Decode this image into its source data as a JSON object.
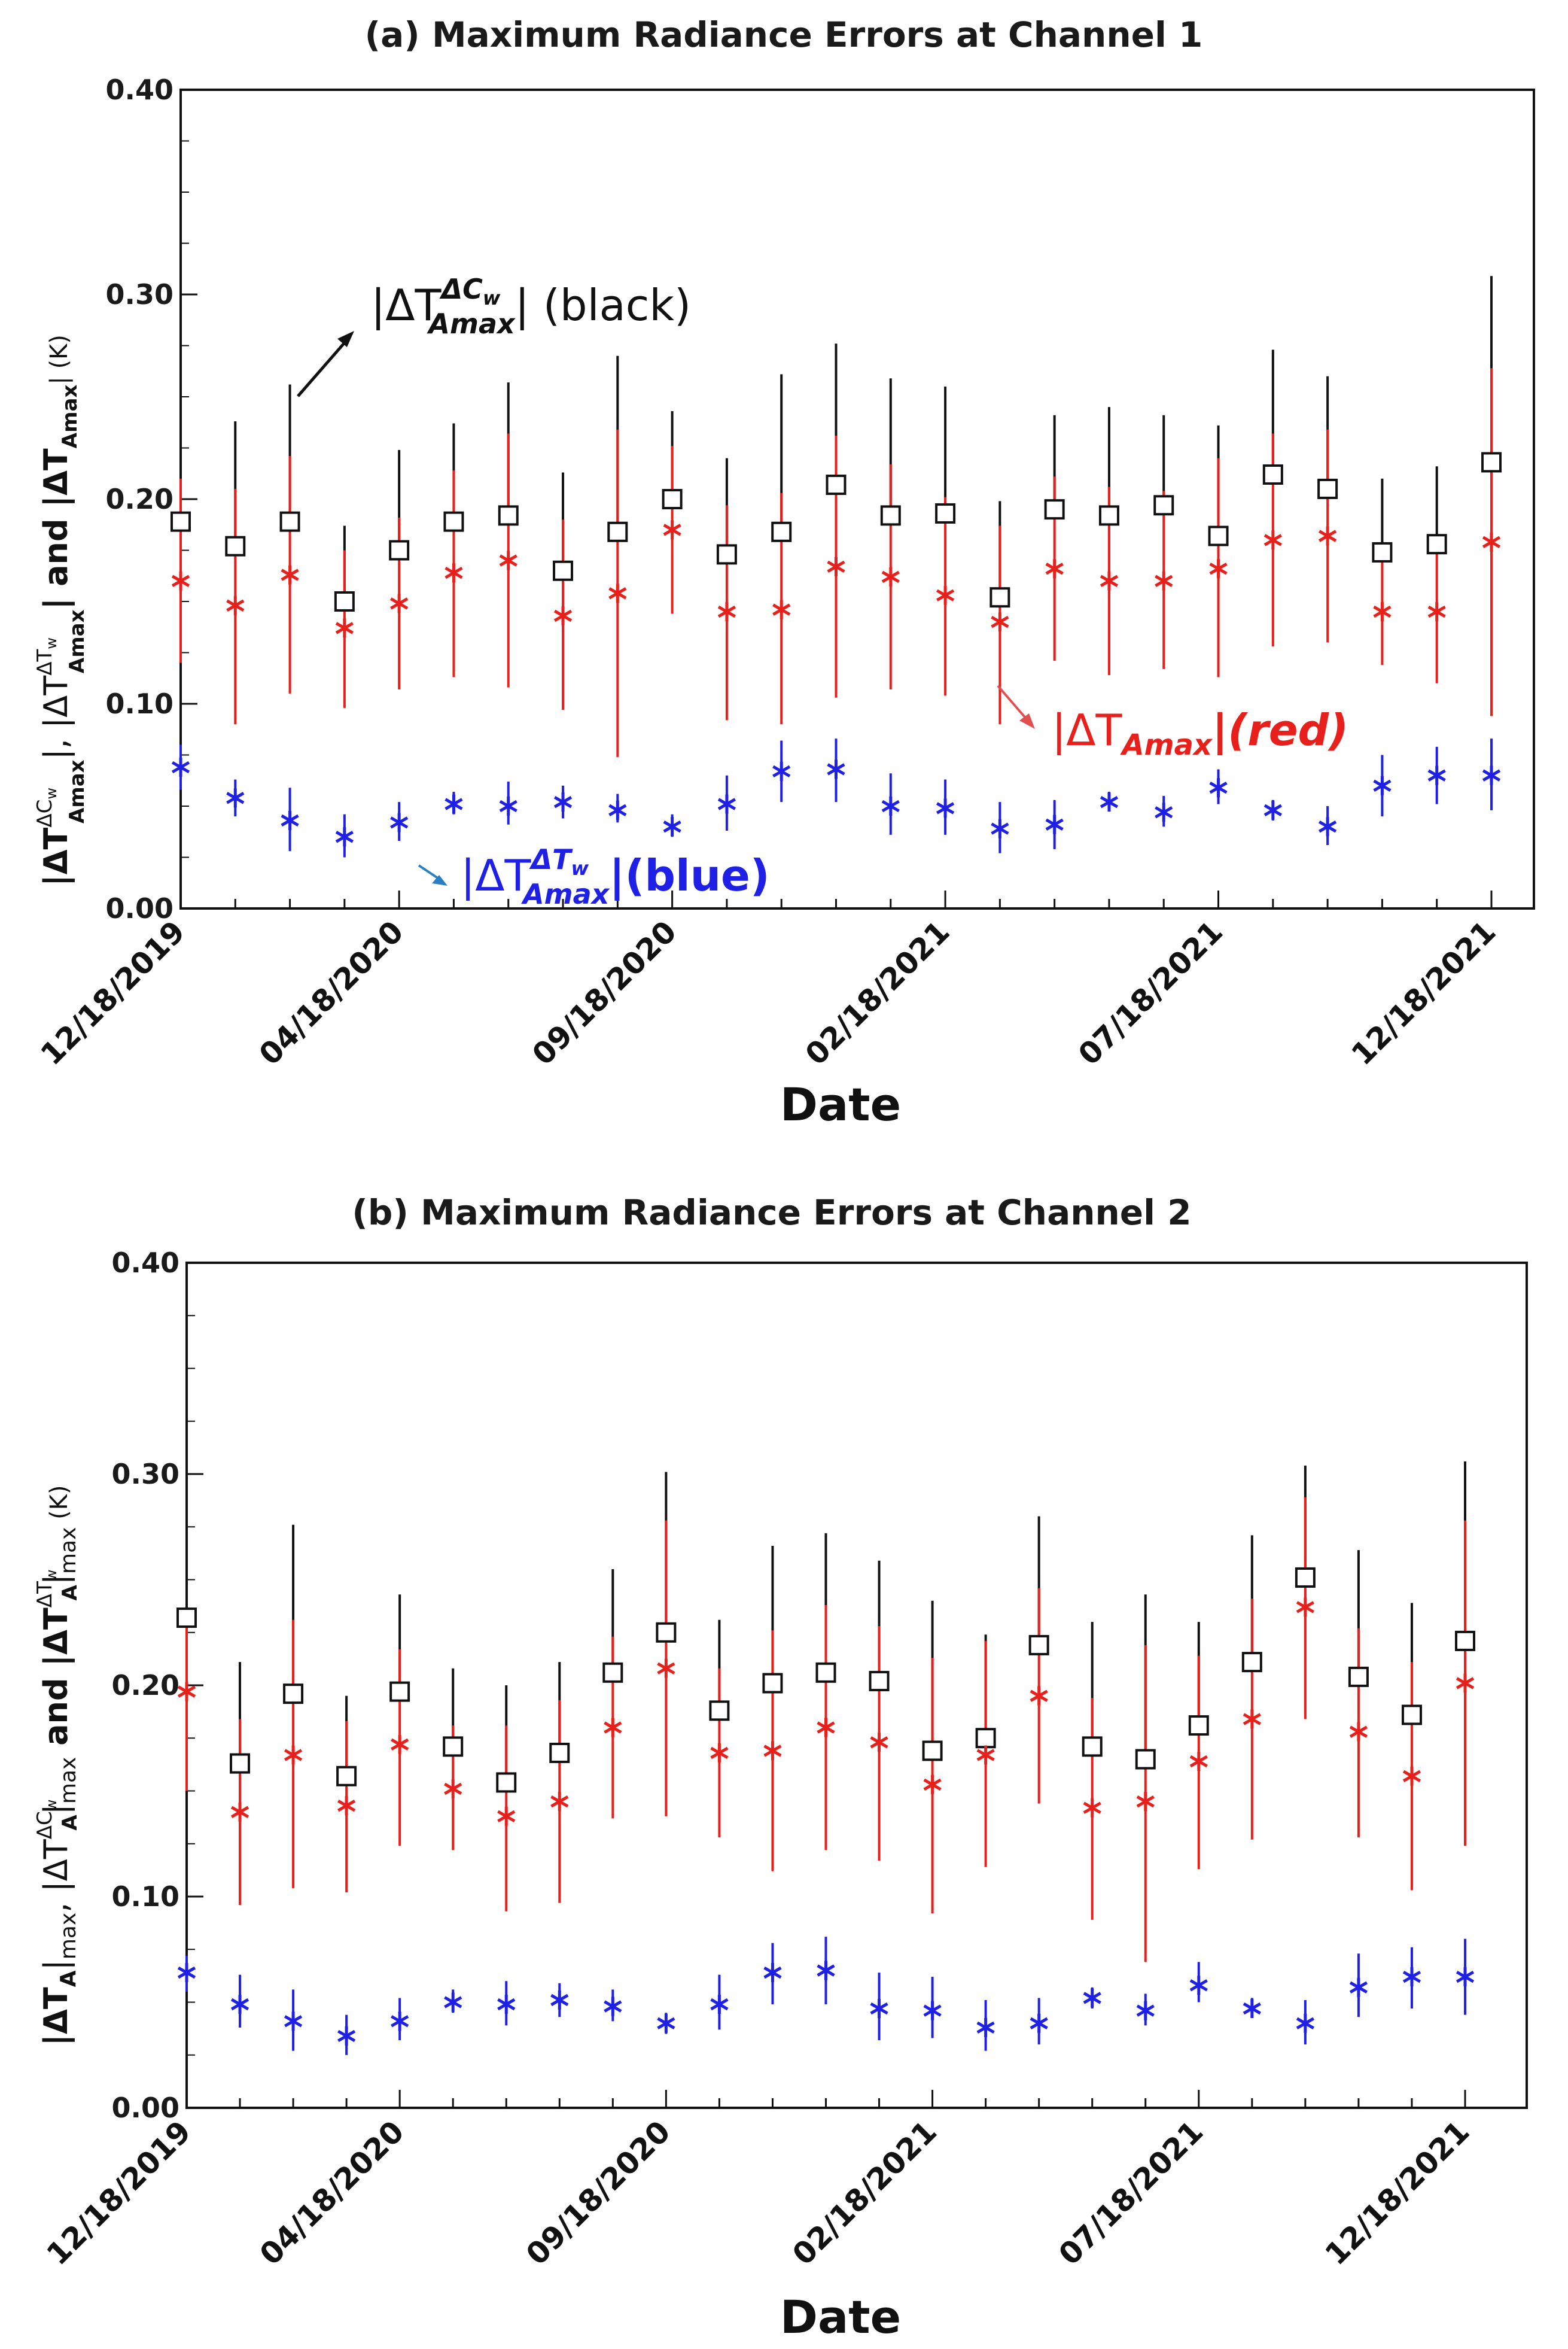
{
  "colors": {
    "black_series": "#111111",
    "red_series": "#e8201c",
    "blue_series": "#1f20e6",
    "red_arrow": "#e05050",
    "blue_arrow": "#2a7fc0"
  },
  "chart_data": [
    {
      "type": "scatter",
      "title": "(a) Maximum Radiance Errors at Channel 1",
      "xlabel": "Date",
      "ylabel_parts": {
        "a": "|ΔT",
        "b": "ΔC",
        "c": "w",
        "d": "Amax",
        "e": "|, |ΔT",
        "f": "ΔT",
        "g": "w",
        "h": "Amax",
        "i": "| and |ΔT",
        "j": "Amax",
        "k": "| (K)"
      },
      "ylim": [
        0,
        0.4
      ],
      "yticks": [
        "0.00",
        "0.10",
        "0.20",
        "0.30",
        "0.40"
      ],
      "ytick_values": [
        0,
        0.1,
        0.2,
        0.3,
        0.4
      ],
      "xticks": [
        "12/18/2019",
        "04/18/2020",
        "09/18/2020",
        "02/18/2021",
        "07/18/2021",
        "12/18/2021"
      ],
      "xtick_index": [
        0,
        4,
        9,
        14,
        19,
        24
      ],
      "x": [
        0,
        1,
        2,
        3,
        4,
        5,
        6,
        7,
        8,
        9,
        10,
        11,
        12,
        13,
        14,
        15,
        16,
        17,
        18,
        19,
        20,
        21,
        22,
        23,
        24
      ],
      "series": [
        {
          "name": "|ΔT_Amax^ΔCw| (black)",
          "marker": "square",
          "color": "#111111",
          "values": [
            0.189,
            0.177,
            0.189,
            0.15,
            0.175,
            0.189,
            0.192,
            0.165,
            0.184,
            0.2,
            0.173,
            0.184,
            0.207,
            0.192,
            0.193,
            0.152,
            0.195,
            0.192,
            0.197,
            0.182,
            0.212,
            0.205,
            0.174,
            0.178,
            0.218
          ],
          "err_high": [
            0.205,
            0.238,
            0.256,
            0.187,
            0.224,
            0.237,
            0.257,
            0.213,
            0.27,
            0.243,
            0.22,
            0.261,
            0.276,
            0.259,
            0.255,
            0.199,
            0.241,
            0.245,
            0.241,
            0.236,
            0.273,
            0.26,
            0.21,
            0.216,
            0.309
          ]
        },
        {
          "name": "|ΔT_Amax|(red)",
          "marker": "star",
          "color": "#e8201c",
          "values": [
            0.16,
            0.148,
            0.163,
            0.137,
            0.149,
            0.164,
            0.17,
            0.143,
            0.154,
            0.185,
            0.145,
            0.146,
            0.167,
            0.162,
            0.153,
            0.14,
            0.166,
            0.16,
            0.16,
            0.166,
            0.18,
            0.182,
            0.145,
            0.145,
            0.179
          ],
          "err_low": [
            0.12,
            0.09,
            0.105,
            0.098,
            0.107,
            0.113,
            0.108,
            0.097,
            0.074,
            0.144,
            0.092,
            0.09,
            0.103,
            0.107,
            0.104,
            0.09,
            0.121,
            0.114,
            0.117,
            0.113,
            0.128,
            0.13,
            0.119,
            0.11,
            0.094
          ],
          "err_high": [
            0.21,
            0.205,
            0.221,
            0.175,
            0.191,
            0.214,
            0.232,
            0.19,
            0.234,
            0.226,
            0.197,
            0.203,
            0.231,
            0.217,
            0.201,
            0.187,
            0.211,
            0.206,
            0.204,
            0.22,
            0.232,
            0.234,
            0.172,
            0.181,
            0.264
          ]
        },
        {
          "name": "|ΔT_Amax^ΔTw|(blue)",
          "marker": "star",
          "color": "#1f20e6",
          "values": [
            0.069,
            0.054,
            0.043,
            0.035,
            0.042,
            0.051,
            0.05,
            0.052,
            0.048,
            0.04,
            0.051,
            0.067,
            0.068,
            0.05,
            0.049,
            0.039,
            0.041,
            0.052,
            0.047,
            0.059,
            0.048,
            0.04,
            0.06,
            0.065,
            0.065
          ],
          "err_low": [
            0.058,
            0.045,
            0.028,
            0.025,
            0.033,
            0.046,
            0.041,
            0.044,
            0.042,
            0.035,
            0.038,
            0.052,
            0.052,
            0.036,
            0.036,
            0.027,
            0.029,
            0.048,
            0.04,
            0.051,
            0.043,
            0.031,
            0.045,
            0.051,
            0.048
          ],
          "err_high": [
            0.08,
            0.063,
            0.059,
            0.046,
            0.052,
            0.057,
            0.062,
            0.06,
            0.056,
            0.046,
            0.065,
            0.082,
            0.083,
            0.066,
            0.063,
            0.052,
            0.053,
            0.057,
            0.055,
            0.068,
            0.053,
            0.05,
            0.075,
            0.079,
            0.083
          ]
        }
      ],
      "annotations": {
        "black": {
          "pre": "|ΔT",
          "sup": "ΔC",
          "supsub": "w",
          "sub": "Amax",
          "post": "| (black)"
        },
        "red": {
          "pre": "|ΔT",
          "sub": "Amax",
          "post": "|(red)"
        },
        "blue": {
          "pre": "|ΔT",
          "sup": "ΔT",
          "supsub": "w",
          "sub": "Amax",
          "post": "|(blue)"
        }
      }
    },
    {
      "type": "scatter",
      "title": "(b) Maximum Radiance Errors at Channel 2",
      "xlabel": "Date",
      "ylabel_parts": {
        "a": "|ΔT",
        "b": "A",
        "c": "|",
        "d": "max",
        "e": ", |ΔT",
        "f": "ΔC",
        "g": "w",
        "h": "A",
        "i": "|",
        "j": "max",
        "k": " and |ΔT",
        "l": "ΔT",
        "m": "w",
        "n": "A",
        "o": "|",
        "p": "max",
        "q": " (K)"
      },
      "ylim": [
        0,
        0.4
      ],
      "yticks": [
        "0.00",
        "0.10",
        "0.20",
        "0.30",
        "0.40"
      ],
      "ytick_values": [
        0,
        0.1,
        0.2,
        0.3,
        0.4
      ],
      "xticks": [
        "12/18/2019",
        "04/18/2020",
        "09/18/2020",
        "02/18/2021",
        "07/18/2021",
        "12/18/2021"
      ],
      "xtick_index": [
        0,
        4,
        9,
        14,
        19,
        24
      ],
      "x": [
        0,
        1,
        2,
        3,
        4,
        5,
        6,
        7,
        8,
        9,
        10,
        11,
        12,
        13,
        14,
        15,
        16,
        17,
        18,
        19,
        20,
        21,
        22,
        23,
        24
      ],
      "series": [
        {
          "name": "|ΔT_A^ΔCw|max (black)",
          "marker": "square",
          "color": "#111111",
          "values": [
            0.232,
            0.163,
            0.196,
            0.157,
            0.197,
            0.171,
            0.154,
            0.168,
            0.206,
            0.225,
            0.188,
            0.201,
            0.206,
            0.202,
            0.169,
            0.175,
            0.219,
            0.171,
            0.165,
            0.181,
            0.211,
            0.251,
            0.204,
            0.186,
            0.221
          ],
          "err_high": [
            0.24,
            0.211,
            0.276,
            0.195,
            0.243,
            0.208,
            0.2,
            0.211,
            0.255,
            0.301,
            0.231,
            0.266,
            0.272,
            0.259,
            0.24,
            0.224,
            0.28,
            0.23,
            0.243,
            0.23,
            0.271,
            0.304,
            0.264,
            0.239,
            0.306
          ]
        },
        {
          "name": "|ΔT_A|max (red)",
          "marker": "star",
          "color": "#e8201c",
          "values": [
            0.197,
            0.14,
            0.167,
            0.143,
            0.172,
            0.151,
            0.138,
            0.145,
            0.18,
            0.208,
            0.168,
            0.169,
            0.18,
            0.173,
            0.153,
            0.167,
            0.195,
            0.142,
            0.145,
            0.164,
            0.184,
            0.237,
            0.178,
            0.157,
            0.201
          ],
          "err_low": [
            0.15,
            0.096,
            0.104,
            0.102,
            0.124,
            0.122,
            0.093,
            0.097,
            0.137,
            0.138,
            0.128,
            0.112,
            0.122,
            0.117,
            0.092,
            0.114,
            0.144,
            0.089,
            0.069,
            0.113,
            0.127,
            0.184,
            0.128,
            0.103,
            0.124
          ],
          "err_high": [
            0.23,
            0.184,
            0.231,
            0.183,
            0.217,
            0.181,
            0.181,
            0.193,
            0.223,
            0.278,
            0.208,
            0.226,
            0.238,
            0.228,
            0.213,
            0.221,
            0.246,
            0.194,
            0.219,
            0.214,
            0.241,
            0.289,
            0.227,
            0.211,
            0.278
          ]
        },
        {
          "name": "|ΔT_A^ΔTw|max (blue)",
          "marker": "star",
          "color": "#1f20e6",
          "values": [
            0.064,
            0.049,
            0.041,
            0.034,
            0.041,
            0.05,
            0.049,
            0.051,
            0.048,
            0.04,
            0.049,
            0.064,
            0.065,
            0.047,
            0.046,
            0.038,
            0.04,
            0.052,
            0.046,
            0.058,
            0.047,
            0.04,
            0.057,
            0.062,
            0.062
          ],
          "err_low": [
            0.055,
            0.038,
            0.027,
            0.025,
            0.032,
            0.045,
            0.039,
            0.043,
            0.041,
            0.035,
            0.037,
            0.049,
            0.049,
            0.032,
            0.033,
            0.027,
            0.03,
            0.047,
            0.039,
            0.05,
            0.043,
            0.03,
            0.043,
            0.047,
            0.044
          ],
          "err_high": [
            0.072,
            0.063,
            0.056,
            0.044,
            0.052,
            0.056,
            0.06,
            0.059,
            0.056,
            0.045,
            0.063,
            0.078,
            0.081,
            0.064,
            0.062,
            0.051,
            0.052,
            0.057,
            0.054,
            0.069,
            0.052,
            0.051,
            0.073,
            0.076,
            0.08
          ]
        }
      ]
    }
  ]
}
